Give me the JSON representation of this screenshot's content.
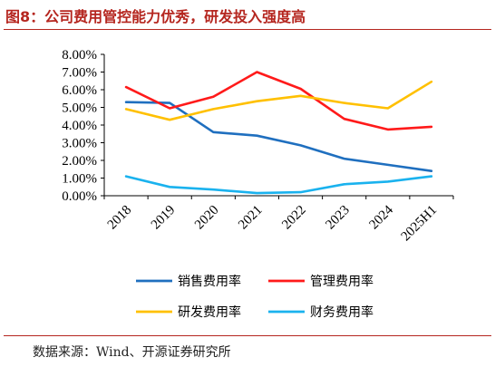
{
  "title": "图8：公司费用管控能力优秀，研发投入强度高",
  "source": "数据来源：Wind、开源证券研究所",
  "chart_data": {
    "type": "line",
    "categories": [
      "2018",
      "2019",
      "2020",
      "2021",
      "2022",
      "2023",
      "2024",
      "2025H1"
    ],
    "ylim": [
      0,
      8
    ],
    "yticks": [
      "0.00%",
      "1.00%",
      "2.00%",
      "3.00%",
      "4.00%",
      "5.00%",
      "6.00%",
      "7.00%",
      "8.00%"
    ],
    "grid": false,
    "legend_position": "bottom",
    "series": [
      {
        "name": "销售费用率",
        "color": "#1f6fbf",
        "values": [
          5.3,
          5.25,
          3.6,
          3.4,
          2.85,
          2.1,
          1.75,
          1.4
        ]
      },
      {
        "name": "管理费用率",
        "color": "#ff1a1a",
        "values": [
          6.15,
          4.95,
          5.6,
          7.0,
          6.05,
          4.35,
          3.75,
          3.9
        ]
      },
      {
        "name": "研发费用率",
        "color": "#ffc000",
        "values": [
          4.9,
          4.3,
          4.9,
          5.35,
          5.65,
          5.25,
          4.95,
          6.45
        ]
      },
      {
        "name": "财务费用率",
        "color": "#1ab2ee",
        "values": [
          1.1,
          0.5,
          0.35,
          0.15,
          0.2,
          0.65,
          0.8,
          1.1
        ]
      }
    ]
  }
}
